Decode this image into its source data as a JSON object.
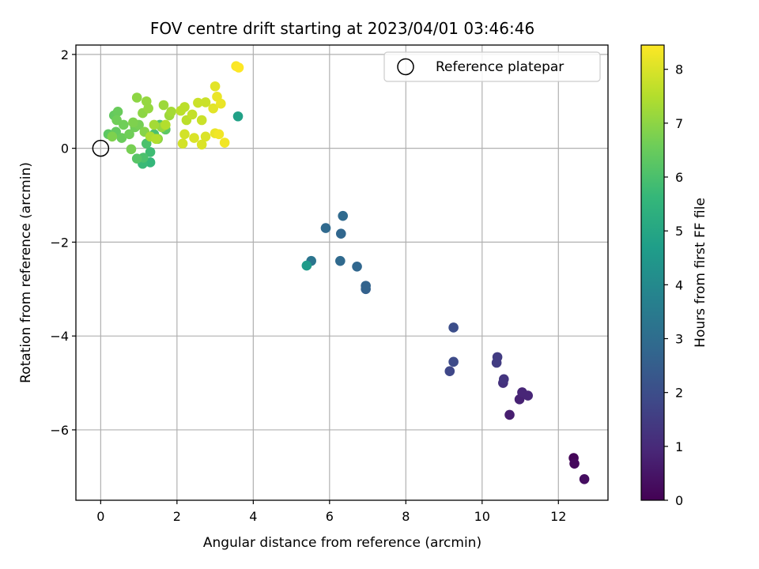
{
  "chart_data": {
    "type": "scatter",
    "title": "FOV centre drift starting at 2023/04/01 03:46:46",
    "xlabel": "Angular distance from reference (arcmin)",
    "ylabel": "Rotation from reference (arcmin)",
    "xlim": [
      -0.65,
      13.3
    ],
    "ylim": [
      -7.5,
      2.2
    ],
    "xticks": [
      0,
      2,
      4,
      6,
      8,
      10,
      12
    ],
    "yticks": [
      -6,
      -4,
      -2,
      0,
      2
    ],
    "xtick_labels": [
      "0",
      "2",
      "4",
      "6",
      "8",
      "10",
      "12"
    ],
    "ytick_labels": [
      "−6",
      "−4",
      "−2",
      "0",
      "2"
    ],
    "grid": true,
    "legend": {
      "placement": "top-right",
      "entries": [
        "Reference platepar"
      ]
    },
    "reference_point": {
      "x": 0,
      "y": 0
    },
    "colorbar": {
      "label": "Hours from first FF file",
      "range": [
        0,
        8.45
      ],
      "ticks": [
        0,
        1,
        2,
        3,
        4,
        5,
        6,
        7,
        8
      ],
      "tick_labels": [
        "0",
        "1",
        "2",
        "3",
        "4",
        "5",
        "6",
        "7",
        "8"
      ],
      "colormap": "viridis"
    },
    "series": [
      {
        "points": [
          [
            12.4,
            -6.6,
            0.1
          ],
          [
            12.42,
            -6.72,
            0.2
          ],
          [
            12.68,
            -7.05,
            0.3
          ],
          [
            10.72,
            -5.68,
            0.7
          ],
          [
            10.98,
            -5.35,
            0.8
          ],
          [
            11.05,
            -5.2,
            0.9
          ],
          [
            11.2,
            -5.27,
            0.9
          ],
          [
            10.55,
            -5.0,
            1.2
          ],
          [
            10.57,
            -4.92,
            1.3
          ],
          [
            10.38,
            -4.57,
            1.5
          ],
          [
            10.4,
            -4.45,
            1.5
          ],
          [
            9.15,
            -4.75,
            1.8
          ],
          [
            9.25,
            -4.55,
            1.9
          ],
          [
            9.25,
            -3.82,
            2.0
          ],
          [
            6.95,
            -3.0,
            2.6
          ],
          [
            6.95,
            -2.93,
            2.7
          ],
          [
            6.72,
            -2.52,
            2.8
          ],
          [
            6.28,
            -2.4,
            2.9
          ],
          [
            6.3,
            -1.82,
            2.8
          ],
          [
            6.35,
            -1.44,
            2.9
          ],
          [
            5.9,
            -1.7,
            2.9
          ],
          [
            5.52,
            -2.4,
            3.3
          ],
          [
            5.4,
            -2.5,
            4.6
          ],
          [
            3.6,
            0.68,
            4.8
          ],
          [
            1.3,
            -0.3,
            5.6
          ],
          [
            1.1,
            -0.33,
            5.7
          ],
          [
            1.3,
            -0.08,
            5.8
          ],
          [
            1.12,
            -0.2,
            6.0
          ],
          [
            0.95,
            -0.22,
            6.2
          ],
          [
            1.2,
            0.1,
            6.0
          ],
          [
            1.55,
            0.5,
            6.1
          ],
          [
            1.4,
            0.3,
            6.0
          ],
          [
            1.7,
            0.4,
            6.3
          ],
          [
            0.2,
            0.3,
            6.3
          ],
          [
            0.4,
            0.35,
            6.4
          ],
          [
            0.55,
            0.22,
            6.5
          ],
          [
            0.35,
            0.7,
            6.4
          ],
          [
            0.45,
            0.78,
            6.5
          ],
          [
            0.42,
            0.6,
            6.6
          ],
          [
            0.6,
            0.5,
            6.6
          ],
          [
            0.75,
            0.3,
            6.6
          ],
          [
            0.8,
            -0.02,
            6.7
          ],
          [
            0.9,
            0.45,
            6.6
          ],
          [
            1.0,
            0.5,
            6.7
          ],
          [
            0.85,
            0.55,
            6.8
          ],
          [
            0.3,
            0.25,
            6.8
          ],
          [
            1.15,
            0.35,
            6.9
          ],
          [
            1.5,
            0.2,
            7.0
          ],
          [
            1.6,
            0.45,
            7.1
          ],
          [
            0.95,
            1.08,
            7.0
          ],
          [
            1.1,
            0.75,
            7.0
          ],
          [
            1.25,
            0.85,
            7.1
          ],
          [
            1.2,
            1.0,
            7.1
          ],
          [
            1.8,
            0.7,
            7.2
          ],
          [
            1.65,
            0.92,
            7.2
          ],
          [
            1.85,
            0.78,
            7.3
          ],
          [
            1.4,
            0.5,
            7.3
          ],
          [
            1.3,
            0.25,
            7.4
          ],
          [
            1.45,
            0.2,
            7.5
          ],
          [
            1.7,
            0.5,
            7.5
          ],
          [
            2.1,
            0.8,
            7.6
          ],
          [
            2.2,
            0.88,
            7.6
          ],
          [
            2.25,
            0.6,
            7.6
          ],
          [
            2.4,
            0.72,
            7.7
          ],
          [
            2.55,
            0.97,
            7.8
          ],
          [
            2.75,
            0.98,
            7.8
          ],
          [
            2.65,
            0.6,
            7.8
          ],
          [
            2.15,
            0.1,
            7.9
          ],
          [
            2.2,
            0.3,
            7.9
          ],
          [
            2.45,
            0.22,
            8.0
          ],
          [
            2.65,
            0.08,
            8.0
          ],
          [
            2.75,
            0.25,
            8.0
          ],
          [
            2.95,
            0.85,
            8.1
          ],
          [
            3.0,
            1.32,
            8.1
          ],
          [
            3.05,
            1.1,
            8.2
          ],
          [
            3.15,
            0.95,
            8.2
          ],
          [
            3.0,
            0.32,
            8.2
          ],
          [
            3.1,
            0.3,
            8.3
          ],
          [
            3.25,
            0.12,
            8.3
          ],
          [
            3.55,
            1.75,
            8.4
          ],
          [
            3.62,
            1.72,
            8.45
          ]
        ]
      }
    ]
  }
}
